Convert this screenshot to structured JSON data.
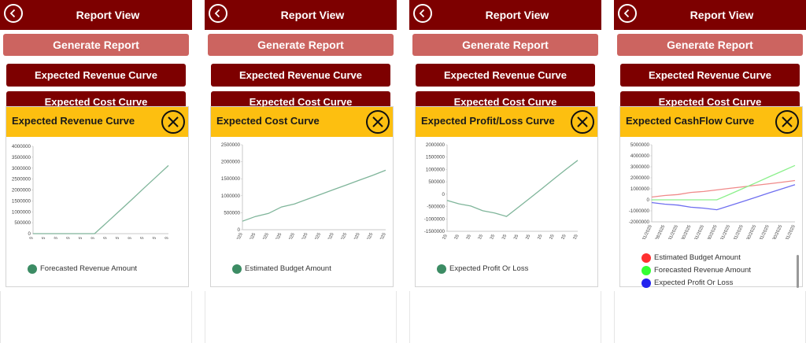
{
  "header_title": "Report View",
  "generate_label": "Generate Report",
  "btn_revenue_label": "Expected Revenue Curve",
  "btn_cost_label": "Expected Cost Curve",
  "colors": {
    "maroon": "#7d0000",
    "generate": "#cc6460",
    "popup_header": "#fdbf10",
    "series_green": "#7fb59a"
  },
  "icons": {
    "back": "chevron-left-icon",
    "close": "close-x-icon"
  },
  "panels": [
    {
      "popup_title": "Expected Revenue Curve",
      "chart_data": {
        "type": "line",
        "categories": [
          "1/31/2025",
          "2/28/2025",
          "3/31/2025",
          "4/30/2025",
          "5/31/2025",
          "6/30/2025",
          "7/31/2025",
          "8/31/2025",
          "9/30/2025",
          "10/31/2025",
          "11/30/2025",
          "12/31/2025"
        ],
        "yticks": [
          "4000000",
          "3500000",
          "3000000",
          "2500000",
          "2000000",
          "1500000",
          "1000000",
          "500000",
          "0"
        ],
        "ylim": [
          0,
          4000000
        ],
        "legend_position": "bottom-left",
        "series": [
          {
            "name": "Forecasted Revenue Amount",
            "color": "#3c8c64",
            "line_color": "#7fb59a",
            "values": [
              0,
              0,
              0,
              0,
              0,
              0,
              510000,
              1030000,
              1550000,
              2080000,
              2600000,
              3120000
            ]
          }
        ]
      }
    },
    {
      "popup_title": "Expected Cost Curve",
      "chart_data": {
        "type": "line",
        "categories": [
          "1/31/2025",
          "2/28/2025",
          "3/31/2025",
          "4/30/2025",
          "5/31/2025",
          "6/30/2025",
          "7/31/2025",
          "8/31/2025",
          "9/30/2025",
          "10/31/2025",
          "11/30/2025",
          "12/31/2025"
        ],
        "yticks": [
          "2500000",
          "2000000",
          "1500000",
          "1000000",
          "500000",
          "0"
        ],
        "ylim": [
          0,
          2500000
        ],
        "legend_position": "bottom-left",
        "series": [
          {
            "name": "Estimated Budget Amount",
            "color": "#3c8c64",
            "line_color": "#7fb59a",
            "values": [
              250000,
              390000,
              480000,
              670000,
              760000,
              900000,
              1040000,
              1180000,
              1320000,
              1460000,
              1600000,
              1750000
            ]
          }
        ]
      }
    },
    {
      "popup_title": "Expected Profit/Loss Curve",
      "chart_data": {
        "type": "line",
        "categories": [
          "1/31/2025",
          "2/28/2025",
          "3/31/2025",
          "4/30/2025",
          "5/31/2025",
          "6/30/2025",
          "7/31/2025",
          "8/31/2025",
          "9/30/2025",
          "10/31/2025",
          "11/30/2025",
          "12/31/2025"
        ],
        "yticks": [
          "2000000",
          "1500000",
          "1000000",
          "500000",
          "0",
          "-500000",
          "-1000000",
          "-1500000"
        ],
        "ylim": [
          -1500000,
          2000000
        ],
        "legend_position": "bottom-left",
        "series": [
          {
            "name": "Expected Profit Or Loss",
            "color": "#3c8c64",
            "line_color": "#7fb59a",
            "values": [
              -250000,
              -390000,
              -480000,
              -670000,
              -760000,
              -900000,
              -530000,
              -150000,
              230000,
              620000,
              1000000,
              1370000
            ]
          }
        ]
      }
    },
    {
      "popup_title": "Expected CashFlow Curve",
      "chart_data": {
        "type": "line",
        "categories": [
          "1/31/2025",
          "2/28/2025",
          "3/31/2025",
          "4/30/2025",
          "5/31/2025",
          "6/30/2025",
          "7/31/2025",
          "8/31/2025",
          "9/30/2025",
          "10/31/2025",
          "11/30/2025",
          "12/31/2025"
        ],
        "yticks": [
          "5000000",
          "4000000",
          "3000000",
          "2000000",
          "1000000",
          "0",
          "-1000000",
          "-2000000"
        ],
        "ylim": [
          -2000000,
          5000000
        ],
        "legend_position": "bottom-left",
        "series": [
          {
            "name": "Estimated Budget Amount",
            "color": "#ff3030",
            "line_color": "#f08a8a",
            "values": [
              250000,
              390000,
              480000,
              670000,
              760000,
              900000,
              1040000,
              1180000,
              1320000,
              1460000,
              1600000,
              1750000
            ]
          },
          {
            "name": "Forecasted Revenue Amount",
            "color": "#33ff33",
            "line_color": "#8cf08c",
            "values": [
              0,
              0,
              0,
              0,
              0,
              0,
              510000,
              1030000,
              1550000,
              2080000,
              2600000,
              3120000
            ]
          },
          {
            "name": "Expected Profit Or Loss",
            "color": "#2222ee",
            "line_color": "#6f6ff0",
            "values": [
              -250000,
              -390000,
              -480000,
              -670000,
              -760000,
              -900000,
              -530000,
              -150000,
              230000,
              620000,
              1000000,
              1370000
            ]
          }
        ]
      }
    }
  ]
}
